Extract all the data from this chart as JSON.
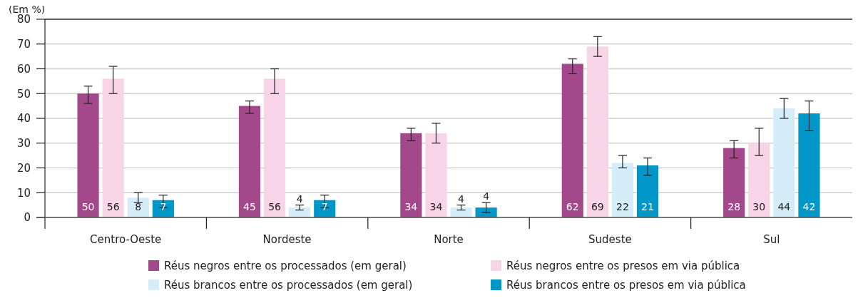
{
  "chart_data": {
    "type": "bar",
    "ylabel": "(Em %)",
    "categories": [
      "Centro-Oeste",
      "Nordeste",
      "Norte",
      "Sudeste",
      "Sul"
    ],
    "series": [
      {
        "name": "Réus negros entre os processados (em geral)",
        "color": "#a3488a",
        "values": [
          50,
          45,
          34,
          62,
          28
        ],
        "errors": [
          [
            46,
            53
          ],
          [
            42,
            47
          ],
          [
            31,
            36
          ],
          [
            58,
            64
          ],
          [
            24,
            31
          ]
        ]
      },
      {
        "name": "Réus negros entre os presos em via pública",
        "color": "#f8d5e6",
        "values": [
          56,
          56,
          34,
          69,
          30
        ],
        "errors": [
          [
            50,
            61
          ],
          [
            50,
            60
          ],
          [
            30,
            38
          ],
          [
            65,
            73
          ],
          [
            25,
            36
          ]
        ]
      },
      {
        "name": "Réus brancos entre os processados (em geral)",
        "color": "#d5ecf9",
        "values": [
          8,
          4,
          4,
          22,
          44
        ],
        "errors": [
          [
            6,
            10
          ],
          [
            3,
            5
          ],
          [
            3,
            5
          ],
          [
            20,
            25
          ],
          [
            40,
            48
          ]
        ]
      },
      {
        "name": "Réus brancos entre os presos em via pública",
        "color": "#0097c8",
        "values": [
          7,
          7,
          4,
          21,
          42
        ],
        "errors": [
          [
            4,
            9
          ],
          [
            4,
            9
          ],
          [
            2,
            6
          ],
          [
            17,
            24
          ],
          [
            35,
            47
          ]
        ]
      }
    ],
    "ylim": [
      0,
      80
    ],
    "yticks": [
      0,
      10,
      20,
      30,
      40,
      50,
      60,
      70,
      80
    ],
    "grid": "y",
    "data_labels": true,
    "legend": "bottom"
  }
}
